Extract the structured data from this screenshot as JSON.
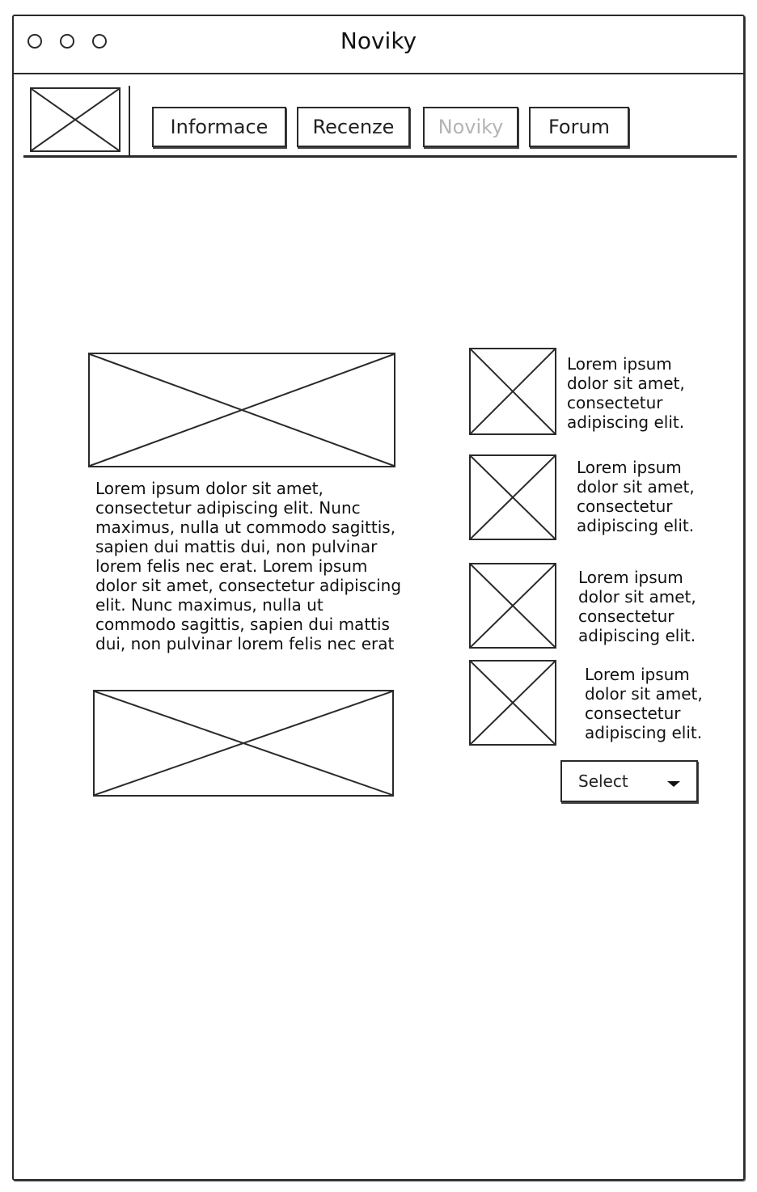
{
  "window": {
    "title": "Noviky",
    "controls": [
      "circle-control",
      "circle-control",
      "circle-control"
    ]
  },
  "nav": {
    "logo": "image-placeholder",
    "tabs": [
      {
        "label": "Informace",
        "active": true
      },
      {
        "label": "Recenze",
        "active": true
      },
      {
        "label": "Noviky",
        "active": false
      },
      {
        "label": "Forum",
        "active": true
      }
    ]
  },
  "main": {
    "article_text": "Lorem ipsum dolor sit amet, consectetur adipiscing elit. Nunc maximus, nulla ut commodo sagittis, sapien dui mattis dui, non pulvinar lorem felis nec erat. Lorem ipsum dolor sit amet, consectetur adipiscing elit. Nunc maximus, nulla ut commodo sagittis, sapien dui mattis dui, non pulvinar lorem felis nec erat"
  },
  "sidebar": {
    "items": [
      {
        "text": "Lorem ipsum dolor sit amet, consectetur adipiscing elit."
      },
      {
        "text": "Lorem ipsum dolor sit amet, consectetur adipiscing elit."
      },
      {
        "text": "Lorem ipsum dolor sit amet, consectetur adipiscing elit."
      },
      {
        "text": "Lorem ipsum dolor sit amet, consectetur adipiscing elit."
      }
    ],
    "select_label": "Select"
  },
  "colors": {
    "stroke": "#2a2a2a",
    "disabled_text": "#b4b4b4",
    "background": "#ffffff"
  }
}
